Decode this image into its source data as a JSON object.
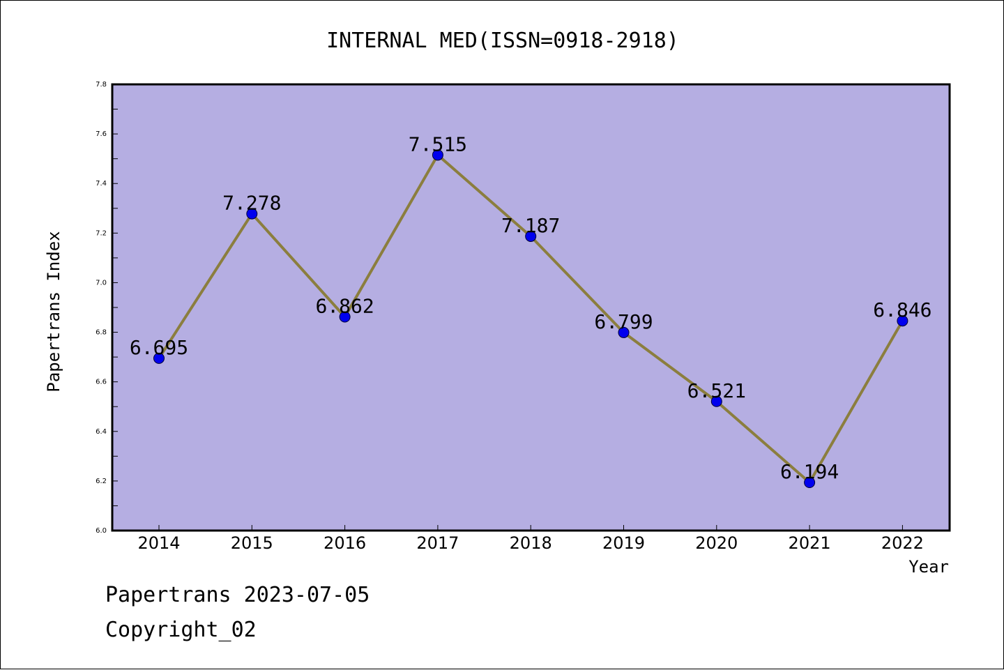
{
  "chart_data": {
    "type": "line",
    "title": "INTERNAL MED(ISSN=0918-2918)",
    "xlabel": "Year",
    "ylabel": "Papertrans Index",
    "categories": [
      "2014",
      "2015",
      "2016",
      "2017",
      "2018",
      "2019",
      "2020",
      "2021",
      "2022"
    ],
    "series": [
      {
        "values": [
          6.695,
          7.278,
          6.862,
          7.515,
          7.187,
          6.799,
          6.521,
          6.194,
          6.846
        ],
        "labels": [
          "6.695",
          "7.278",
          "6.862",
          "7.515",
          "7.187",
          "6.799",
          "6.521",
          "6.194",
          "6.846"
        ]
      }
    ],
    "ylim": [
      6.0,
      7.8
    ],
    "yticks": [
      "6.0",
      "6.2",
      "6.4",
      "6.6",
      "6.8",
      "7.0",
      "7.2",
      "7.4",
      "7.6",
      "7.8"
    ],
    "grid": false,
    "colors": {
      "plot_background": "#b5aee2",
      "line": "#8b7e3e",
      "marker": "#0000ee"
    }
  },
  "footer": {
    "line1": "Papertrans 2023-07-05",
    "line2": "Copyright_02"
  }
}
